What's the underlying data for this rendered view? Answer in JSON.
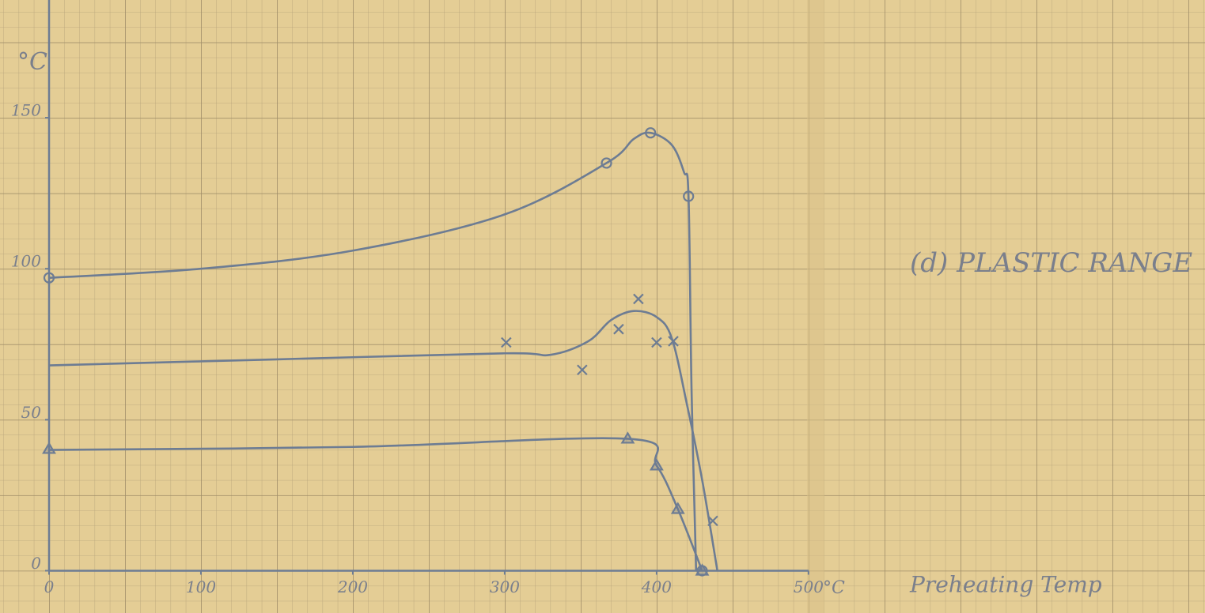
{
  "chart_data": {
    "type": "line",
    "title": "(d) PLASTIC RANGE",
    "xlabel": "Preheating Temp",
    "x_unit": "°C",
    "ylabel": "°C",
    "xlim": [
      0,
      760
    ],
    "ylim": [
      -14,
      189
    ],
    "xticks": [
      0,
      100,
      200,
      300,
      400,
      500
    ],
    "yticks": [
      0,
      50,
      100,
      150
    ],
    "color": "#6d7c93",
    "series": [
      {
        "style": "line",
        "x": [
          0,
          100,
          200,
          300,
          367,
          385,
          396,
          410,
          418,
          421,
          423,
          426
        ],
        "values": [
          97,
          100,
          106,
          118,
          135,
          143,
          145,
          141,
          132,
          124,
          60,
          0
        ]
      },
      {
        "style": "markers",
        "marker": "circle",
        "x": [
          0,
          367,
          396,
          421,
          430
        ],
        "values": [
          97,
          135,
          145,
          124,
          0
        ]
      },
      {
        "style": "line",
        "x": [
          0,
          150,
          300,
          330,
          355,
          370,
          385,
          400,
          410,
          420,
          430,
          440
        ],
        "values": [
          68,
          70,
          72,
          71.5,
          76,
          83,
          86,
          84,
          77,
          55,
          30,
          0
        ]
      },
      {
        "style": "markers",
        "marker": "x",
        "x": [
          301,
          351,
          375,
          388,
          400,
          411,
          437
        ],
        "values": [
          75.6,
          66.5,
          80,
          90,
          75.6,
          76,
          16.5
        ]
      },
      {
        "style": "line",
        "x": [
          0,
          200,
          381,
          400,
          414,
          430
        ],
        "values": [
          40,
          41,
          43.7,
          34.8,
          20.4,
          0
        ]
      },
      {
        "style": "markers",
        "marker": "triangle",
        "x": [
          0,
          381,
          400,
          414,
          430
        ],
        "values": [
          40.3,
          43.7,
          34.8,
          20.4,
          0
        ]
      }
    ]
  }
}
